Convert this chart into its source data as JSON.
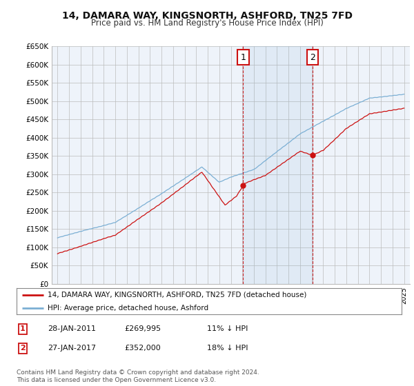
{
  "title": "14, DAMARA WAY, KINGSNORTH, ASHFORD, TN25 7FD",
  "subtitle": "Price paid vs. HM Land Registry's House Price Index (HPI)",
  "ylabel_ticks": [
    "£0",
    "£50K",
    "£100K",
    "£150K",
    "£200K",
    "£250K",
    "£300K",
    "£350K",
    "£400K",
    "£450K",
    "£500K",
    "£550K",
    "£600K",
    "£650K"
  ],
  "ytick_values": [
    0,
    50000,
    100000,
    150000,
    200000,
    250000,
    300000,
    350000,
    400000,
    450000,
    500000,
    550000,
    600000,
    650000
  ],
  "hpi_color": "#7bafd4",
  "price_color": "#cc1111",
  "vline_color": "#cc1111",
  "marker1_x": 2011.07,
  "marker2_x": 2017.07,
  "marker1_price": 269995,
  "marker2_price": 352000,
  "legend_line1": "14, DAMARA WAY, KINGSNORTH, ASHFORD, TN25 7FD (detached house)",
  "legend_line2": "HPI: Average price, detached house, Ashford",
  "footnote": "Contains HM Land Registry data © Crown copyright and database right 2024.\nThis data is licensed under the Open Government Licence v3.0.",
  "bg_color": "#ffffff",
  "plot_bg": "#eef3fa",
  "grid_color": "#bbbbbb",
  "xlim": [
    1994.5,
    2025.5
  ],
  "ylim": [
    0,
    650000
  ],
  "xtick_start": 1995,
  "xtick_end": 2025
}
